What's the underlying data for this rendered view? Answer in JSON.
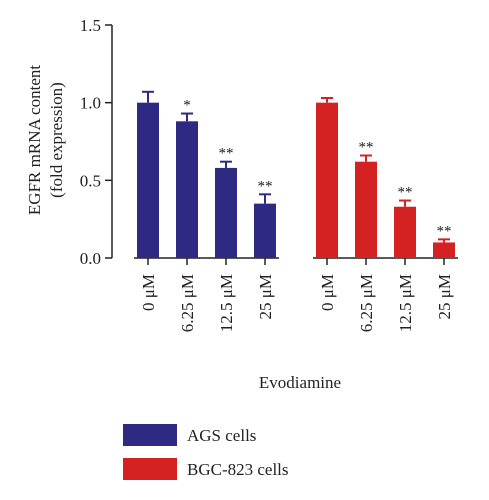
{
  "chart_data": {
    "type": "bar",
    "ylabel_line1": "EGFR mRNA content",
    "ylabel_line2": "(fold expression)",
    "xlabel": "Evodiamine",
    "ylim": [
      0,
      1.5
    ],
    "yticks": [
      "0.0",
      "0.5",
      "1.0",
      "1.5"
    ],
    "ytick_values": [
      0,
      0.5,
      1.0,
      1.5
    ],
    "grid": false,
    "legend_position": "bottom",
    "groups": [
      {
        "name": "AGS cells",
        "color": "#2e2a84",
        "categories": [
          "0 μM",
          "6.25 μM",
          "12.5 μM",
          "25 μM"
        ],
        "values": [
          1.0,
          0.88,
          0.58,
          0.35
        ],
        "errors": [
          0.07,
          0.05,
          0.04,
          0.06
        ],
        "significance": [
          "",
          "*",
          "**",
          "**"
        ]
      },
      {
        "name": "BGC-823 cells",
        "color": "#d42222",
        "categories": [
          "0 μM",
          "6.25 μM",
          "12.5 μM",
          "25 μM"
        ],
        "values": [
          1.0,
          0.62,
          0.33,
          0.1
        ],
        "errors": [
          0.03,
          0.04,
          0.04,
          0.02
        ],
        "significance": [
          "",
          "**",
          "**",
          "**"
        ]
      }
    ]
  }
}
